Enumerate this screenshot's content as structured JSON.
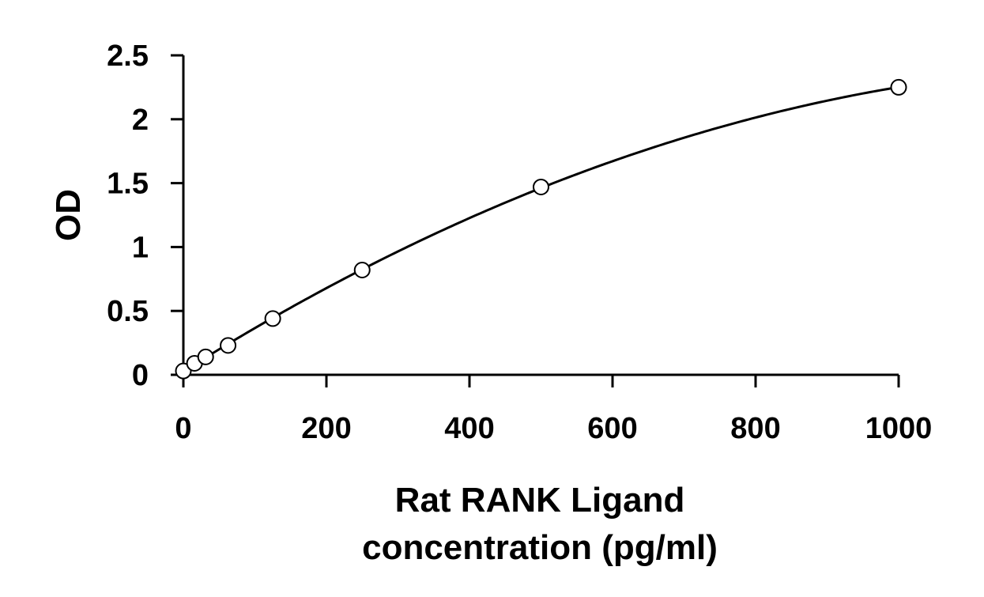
{
  "chart_data": {
    "type": "scatter",
    "title": "",
    "xlabel_lines": [
      "Rat RANK Ligand",
      "concentration (pg/ml)"
    ],
    "ylabel": "OD",
    "xlim": [
      0,
      1000
    ],
    "ylim": [
      0,
      2.5
    ],
    "x_ticks": [
      0,
      200,
      400,
      600,
      800,
      1000
    ],
    "y_ticks": [
      0,
      0.5,
      1,
      1.5,
      2,
      2.5
    ],
    "x_tick_labels": [
      "0",
      "200",
      "400",
      "600",
      "800",
      "1000"
    ],
    "y_tick_labels": [
      "0",
      "0.5",
      "1",
      "1.5",
      "2",
      "2.5"
    ],
    "grid": false,
    "legend": "none",
    "series": [
      {
        "marker": "open-circle",
        "fit": "smooth curve",
        "x": [
          0,
          15.6,
          31.2,
          62.5,
          125,
          250,
          500,
          1000
        ],
        "y": [
          0.03,
          0.09,
          0.14,
          0.23,
          0.44,
          0.82,
          1.47,
          2.25
        ]
      }
    ],
    "colors": {
      "axis": "#000000",
      "marker_stroke": "#000000",
      "marker_fill": "#ffffff",
      "curve": "#000000"
    }
  }
}
